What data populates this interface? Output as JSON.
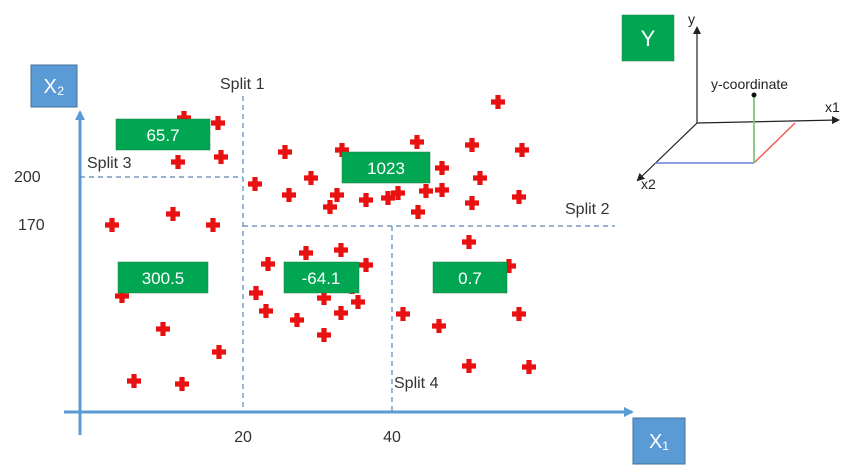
{
  "axes": {
    "x_label": "X₁",
    "y_label": "X₂",
    "x_ticks": [
      "20",
      "40"
    ],
    "y_ticks": [
      "200",
      "170"
    ]
  },
  "splits": [
    {
      "label": "Split 1"
    },
    {
      "label": "Split 2"
    },
    {
      "label": "Split 3"
    },
    {
      "label": "Split 4"
    }
  ],
  "regions": [
    {
      "value": "65.7"
    },
    {
      "value": "1023"
    },
    {
      "value": "300.5"
    },
    {
      "value": "-64.1"
    },
    {
      "value": "0.7"
    }
  ],
  "inset": {
    "y_box_label": "Y",
    "axis_y": "y",
    "axis_x1": "x1",
    "axis_x2": "x2",
    "point_label": "y-coordinate"
  },
  "colors": {
    "points": "#e81010",
    "region_boxes": "#00a651",
    "axis": "#5b9bd5"
  }
}
